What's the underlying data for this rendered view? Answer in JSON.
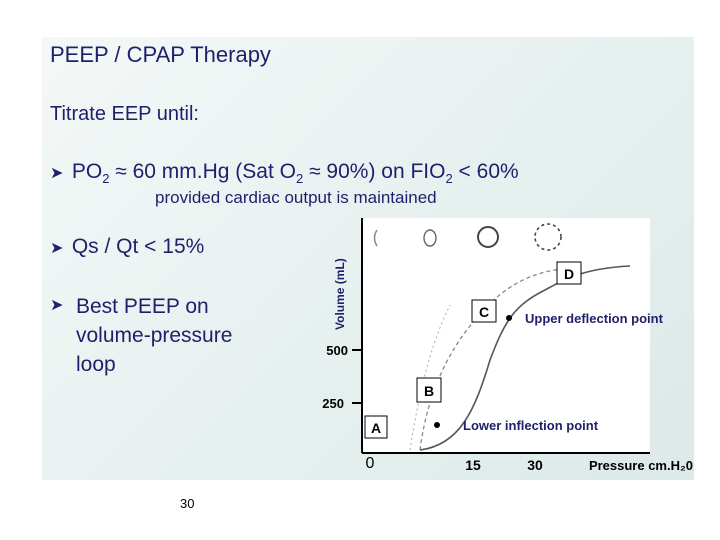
{
  "slide": {
    "title": "PEEP  /  CPAP  Therapy",
    "subtitle": "Titrate EEP  until:",
    "bullet1": {
      "a": "PO",
      "a_sub": "2",
      "b": " ≈  60 mm.Hg (Sat O",
      "b_sub": "2",
      "c": " ≈ 90%) on FIO",
      "c_sub": "2",
      "d": " < 60%"
    },
    "bullet1_note": "provided cardiac output is maintained",
    "bullet2": "Qs / Qt   <  15%",
    "bullet3_lines": [
      "Best PEEP on",
      "volume-pressure",
      "loop"
    ],
    "slide_number": "30",
    "bullet_icon": "arrow-right-icon",
    "accent_color": "#1f1f6b"
  },
  "chart_data": {
    "type": "line",
    "ylabel": "Volume (mL)",
    "xlabel": "Pressure cm.H₂0",
    "x_ticks": [
      "0",
      "15",
      "30"
    ],
    "y_ticks": [
      "250",
      "500"
    ],
    "points": [
      {
        "label": "A"
      },
      {
        "label": "B"
      },
      {
        "label": "C"
      },
      {
        "label": "D"
      }
    ],
    "annotations": [
      "Upper deflection point",
      "Lower inflection point"
    ],
    "series": [
      {
        "style": "solid"
      },
      {
        "style": "dashed"
      }
    ]
  }
}
